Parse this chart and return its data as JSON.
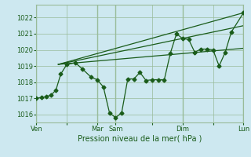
{
  "xlabel": "Pression niveau de la mer( hPa )",
  "bg_color": "#cde8f0",
  "grid_color": "#99bb99",
  "line_color": "#1a5c1a",
  "ylim": [
    1015.5,
    1022.8
  ],
  "yticks": [
    1016,
    1017,
    1018,
    1019,
    1020,
    1021,
    1022
  ],
  "xtick_labels": [
    "Ven",
    "",
    "Mar",
    "Sam",
    "",
    "Dim",
    "",
    "Lun"
  ],
  "xtick_positions": [
    0,
    2.5,
    5,
    6.5,
    9.5,
    12,
    14.5,
    17
  ],
  "vline_positions": [
    0,
    5,
    6.5,
    12,
    17
  ],
  "series1_x": [
    0.0,
    0.4,
    0.8,
    1.2,
    1.6,
    2.0,
    2.5,
    3.2,
    3.8,
    4.5,
    5.0,
    5.5,
    6.0,
    6.5,
    7.0,
    7.5,
    8.0,
    8.5,
    9.0,
    9.5,
    10.0,
    10.5,
    11.0,
    11.5,
    12.0,
    12.5,
    13.0,
    13.5,
    14.0,
    14.5,
    15.0,
    15.5,
    16.0,
    17.0
  ],
  "series1_y": [
    1017.0,
    1017.05,
    1017.1,
    1017.2,
    1017.5,
    1018.5,
    1019.1,
    1019.2,
    1018.8,
    1018.3,
    1018.15,
    1017.7,
    1016.1,
    1015.8,
    1016.1,
    1018.2,
    1018.2,
    1018.6,
    1018.1,
    1018.15,
    1018.15,
    1018.15,
    1019.8,
    1021.0,
    1020.7,
    1020.65,
    1019.85,
    1020.05,
    1020.05,
    1020.0,
    1019.0,
    1019.85,
    1021.1,
    1022.3
  ],
  "series2_x": [
    1.8,
    17.0
  ],
  "series2_y": [
    1019.1,
    1022.3
  ],
  "series3_x": [
    1.8,
    17.0
  ],
  "series3_y": [
    1019.1,
    1021.5
  ],
  "series4_x": [
    1.8,
    17.0
  ],
  "series4_y": [
    1019.1,
    1020.1
  ],
  "marker_size": 2.5,
  "linewidth": 0.9,
  "ytick_fontsize": 6,
  "xtick_fontsize": 6,
  "xlabel_fontsize": 7
}
